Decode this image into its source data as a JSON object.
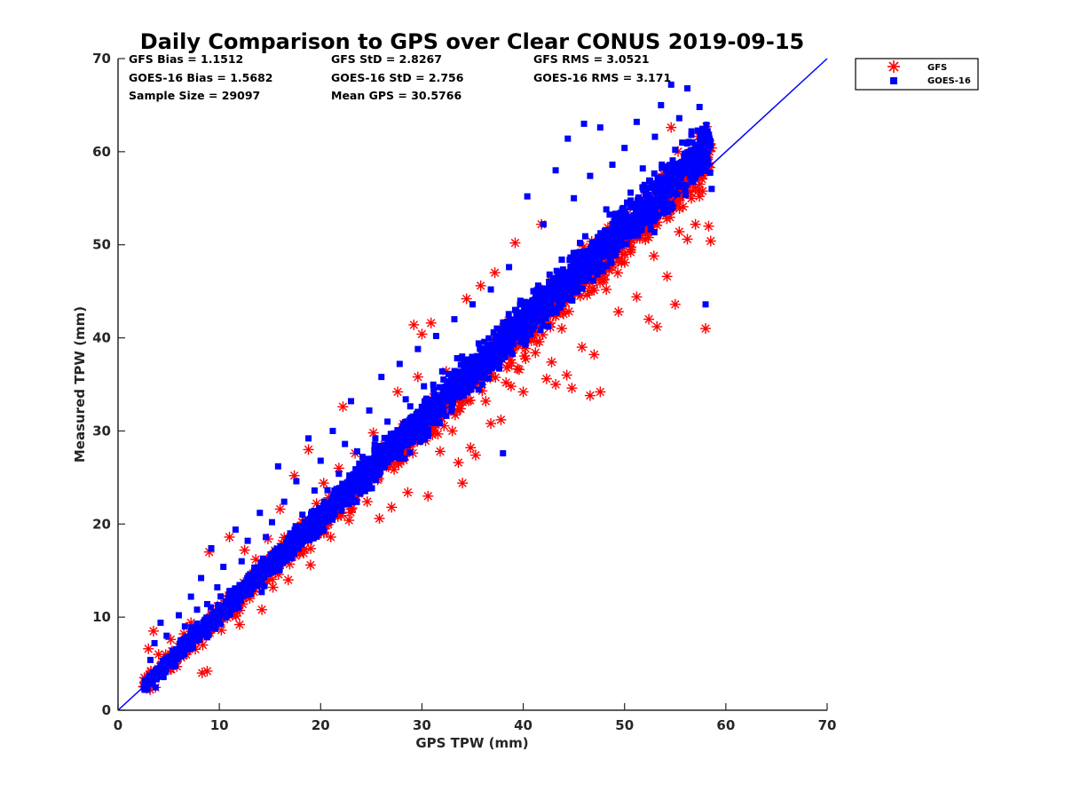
{
  "chart_data": {
    "type": "scatter",
    "title": "Daily Comparison to GPS over Clear CONUS 2019-09-15",
    "xlabel": "GPS TPW (mm)",
    "ylabel": "Measured TPW (mm)",
    "xlim": [
      0,
      70
    ],
    "ylim": [
      0,
      70
    ],
    "xticks": [
      "0",
      "10",
      "20",
      "30",
      "40",
      "50",
      "60",
      "70"
    ],
    "yticks": [
      "0",
      "10",
      "20",
      "30",
      "40",
      "50",
      "60",
      "70"
    ],
    "legend_position": "outside-top-right",
    "stats": [
      "GFS Bias = 1.1512",
      "GFS StD = 2.8267",
      "GFS RMS = 3.0521",
      "GOES-16 Bias = 1.5682",
      "GOES-16 StD = 2.756",
      "GOES-16 RMS = 3.171",
      "Sample Size = 29097",
      "Mean GPS = 30.5766"
    ],
    "reference_line": {
      "name": "1:1 line",
      "x": [
        0,
        70
      ],
      "y": [
        0,
        70
      ],
      "color": "#0000ff"
    },
    "series": [
      {
        "name": "GFS",
        "marker": "asterisk",
        "color": "#ff0000",
        "points": [
          [
            2.6,
            3.5
          ],
          [
            3.0,
            6.6
          ],
          [
            3.5,
            8.5
          ],
          [
            4.0,
            6.0
          ],
          [
            4.5,
            5.2
          ],
          [
            5.2,
            7.6
          ],
          [
            6.0,
            6.2
          ],
          [
            6.5,
            8.2
          ],
          [
            7.2,
            9.4
          ],
          [
            7.8,
            8.0
          ],
          [
            8.3,
            4.0
          ],
          [
            8.8,
            4.2
          ],
          [
            9.0,
            17.0
          ],
          [
            9.4,
            10.6
          ],
          [
            10.2,
            8.6
          ],
          [
            11.0,
            18.6
          ],
          [
            11.5,
            11.7
          ],
          [
            12.0,
            9.2
          ],
          [
            12.5,
            17.2
          ],
          [
            13.0,
            12.0
          ],
          [
            13.6,
            16.2
          ],
          [
            14.2,
            10.8
          ],
          [
            14.8,
            18.4
          ],
          [
            15.3,
            13.2
          ],
          [
            16.0,
            21.6
          ],
          [
            16.8,
            14.0
          ],
          [
            17.4,
            25.2
          ],
          [
            17.9,
            17.0
          ],
          [
            18.4,
            19.6
          ],
          [
            18.8,
            28.0
          ],
          [
            19.0,
            15.6
          ],
          [
            19.6,
            22.2
          ],
          [
            20.3,
            24.4
          ],
          [
            21.0,
            18.6
          ],
          [
            21.8,
            26.0
          ],
          [
            22.2,
            32.6
          ],
          [
            22.8,
            20.4
          ],
          [
            23.4,
            27.6
          ],
          [
            24.0,
            24.0
          ],
          [
            24.6,
            22.4
          ],
          [
            25.2,
            29.8
          ],
          [
            25.8,
            20.6
          ],
          [
            26.5,
            26.2
          ],
          [
            27.0,
            21.8
          ],
          [
            27.6,
            34.2
          ],
          [
            28.0,
            30.0
          ],
          [
            28.6,
            23.4
          ],
          [
            29.2,
            41.4
          ],
          [
            29.6,
            35.8
          ],
          [
            30.0,
            40.4
          ],
          [
            30.6,
            23.0
          ],
          [
            30.9,
            41.6
          ],
          [
            31.4,
            31.4
          ],
          [
            31.8,
            27.8
          ],
          [
            32.4,
            36.4
          ],
          [
            33.0,
            30.0
          ],
          [
            33.6,
            26.6
          ],
          [
            34.0,
            24.4
          ],
          [
            34.4,
            44.2
          ],
          [
            34.8,
            28.2
          ],
          [
            35.3,
            27.4
          ],
          [
            35.8,
            45.6
          ],
          [
            36.3,
            33.2
          ],
          [
            36.8,
            30.8
          ],
          [
            37.2,
            47.0
          ],
          [
            37.8,
            31.2
          ],
          [
            38.3,
            35.2
          ],
          [
            38.8,
            34.8
          ],
          [
            39.2,
            50.2
          ],
          [
            39.6,
            36.6
          ],
          [
            40.0,
            34.2
          ],
          [
            40.6,
            42.8
          ],
          [
            41.2,
            38.4
          ],
          [
            41.8,
            52.2
          ],
          [
            42.3,
            35.6
          ],
          [
            42.8,
            37.4
          ],
          [
            43.2,
            35.0
          ],
          [
            43.8,
            41.0
          ],
          [
            44.3,
            36.0
          ],
          [
            44.8,
            34.6
          ],
          [
            45.2,
            46.0
          ],
          [
            45.8,
            39.0
          ],
          [
            46.3,
            44.6
          ],
          [
            46.6,
            33.8
          ],
          [
            47.0,
            38.2
          ],
          [
            47.6,
            34.2
          ],
          [
            48.2,
            45.2
          ],
          [
            48.8,
            47.8
          ],
          [
            49.4,
            42.8
          ],
          [
            50.0,
            51.2
          ],
          [
            50.6,
            49.2
          ],
          [
            51.2,
            44.4
          ],
          [
            51.8,
            52.6
          ],
          [
            52.4,
            42.0
          ],
          [
            52.9,
            48.8
          ],
          [
            53.2,
            41.2
          ],
          [
            53.8,
            55.4
          ],
          [
            54.2,
            46.6
          ],
          [
            54.6,
            62.6
          ],
          [
            55.0,
            43.6
          ],
          [
            55.4,
            51.4
          ],
          [
            55.8,
            57.6
          ],
          [
            56.2,
            50.6
          ],
          [
            56.6,
            60.0
          ],
          [
            57.0,
            52.2
          ],
          [
            57.4,
            55.2
          ],
          [
            57.8,
            59.4
          ],
          [
            58.0,
            41.0
          ],
          [
            58.3,
            52.0
          ],
          [
            58.5,
            50.4
          ],
          [
            58.6,
            60.4
          ]
        ]
      },
      {
        "name": "GOES-16",
        "marker": "square",
        "color": "#0000ff",
        "points": [
          [
            2.8,
            2.6
          ],
          [
            3.2,
            5.4
          ],
          [
            3.6,
            7.2
          ],
          [
            4.2,
            9.4
          ],
          [
            4.8,
            8.0
          ],
          [
            5.4,
            6.4
          ],
          [
            6.0,
            10.2
          ],
          [
            6.6,
            9.0
          ],
          [
            7.2,
            12.2
          ],
          [
            7.8,
            10.8
          ],
          [
            8.2,
            14.2
          ],
          [
            8.8,
            11.4
          ],
          [
            9.2,
            17.4
          ],
          [
            9.8,
            13.2
          ],
          [
            10.4,
            15.4
          ],
          [
            11.0,
            12.8
          ],
          [
            11.6,
            19.4
          ],
          [
            12.2,
            16.0
          ],
          [
            12.8,
            18.2
          ],
          [
            13.4,
            14.6
          ],
          [
            14.0,
            21.2
          ],
          [
            14.6,
            18.6
          ],
          [
            15.2,
            20.2
          ],
          [
            15.8,
            26.2
          ],
          [
            16.4,
            22.4
          ],
          [
            17.0,
            19.0
          ],
          [
            17.6,
            24.6
          ],
          [
            18.2,
            21.0
          ],
          [
            18.8,
            29.2
          ],
          [
            19.4,
            23.6
          ],
          [
            20.0,
            26.8
          ],
          [
            20.6,
            22.2
          ],
          [
            21.2,
            30.0
          ],
          [
            21.8,
            25.4
          ],
          [
            22.4,
            28.6
          ],
          [
            23.0,
            33.2
          ],
          [
            23.6,
            27.8
          ],
          [
            24.2,
            24.8
          ],
          [
            24.8,
            32.2
          ],
          [
            25.4,
            29.2
          ],
          [
            26.0,
            35.8
          ],
          [
            26.6,
            31.0
          ],
          [
            27.2,
            28.2
          ],
          [
            27.8,
            37.2
          ],
          [
            28.4,
            33.4
          ],
          [
            29.0,
            30.4
          ],
          [
            29.6,
            38.8
          ],
          [
            30.2,
            34.8
          ],
          [
            30.8,
            32.0
          ],
          [
            31.4,
            40.2
          ],
          [
            32.0,
            36.4
          ],
          [
            32.6,
            33.6
          ],
          [
            33.2,
            42.0
          ],
          [
            33.8,
            37.8
          ],
          [
            34.4,
            35.0
          ],
          [
            35.0,
            43.6
          ],
          [
            35.6,
            39.4
          ],
          [
            36.2,
            36.6
          ],
          [
            36.8,
            45.2
          ],
          [
            37.4,
            41.0
          ],
          [
            38.0,
            27.6
          ],
          [
            38.6,
            47.6
          ],
          [
            39.2,
            43.0
          ],
          [
            39.8,
            39.6
          ],
          [
            40.4,
            55.2
          ],
          [
            41.0,
            45.0
          ],
          [
            41.6,
            41.8
          ],
          [
            42.0,
            52.2
          ],
          [
            42.6,
            46.8
          ],
          [
            43.2,
            58.0
          ],
          [
            43.8,
            48.4
          ],
          [
            44.4,
            61.4
          ],
          [
            45.0,
            55.0
          ],
          [
            45.6,
            50.2
          ],
          [
            46.0,
            63.0
          ],
          [
            46.6,
            57.4
          ],
          [
            47.2,
            49.0
          ],
          [
            47.6,
            62.6
          ],
          [
            48.2,
            53.8
          ],
          [
            48.8,
            58.6
          ],
          [
            49.4,
            51.0
          ],
          [
            50.0,
            60.4
          ],
          [
            50.6,
            55.6
          ],
          [
            51.2,
            63.2
          ],
          [
            51.8,
            58.2
          ],
          [
            52.4,
            53.0
          ],
          [
            53.0,
            61.6
          ],
          [
            53.6,
            65.0
          ],
          [
            54.0,
            56.2
          ],
          [
            54.6,
            67.2
          ],
          [
            55.0,
            60.2
          ],
          [
            55.4,
            63.6
          ],
          [
            55.8,
            58.4
          ],
          [
            56.2,
            66.8
          ],
          [
            56.6,
            61.8
          ],
          [
            57.0,
            57.2
          ],
          [
            57.4,
            64.8
          ],
          [
            57.8,
            59.6
          ],
          [
            58.0,
            43.6
          ],
          [
            58.2,
            62.2
          ],
          [
            58.6,
            56.0
          ]
        ]
      }
    ]
  },
  "legend": [
    {
      "label": "GFS"
    },
    {
      "label": "GOES-16"
    }
  ]
}
